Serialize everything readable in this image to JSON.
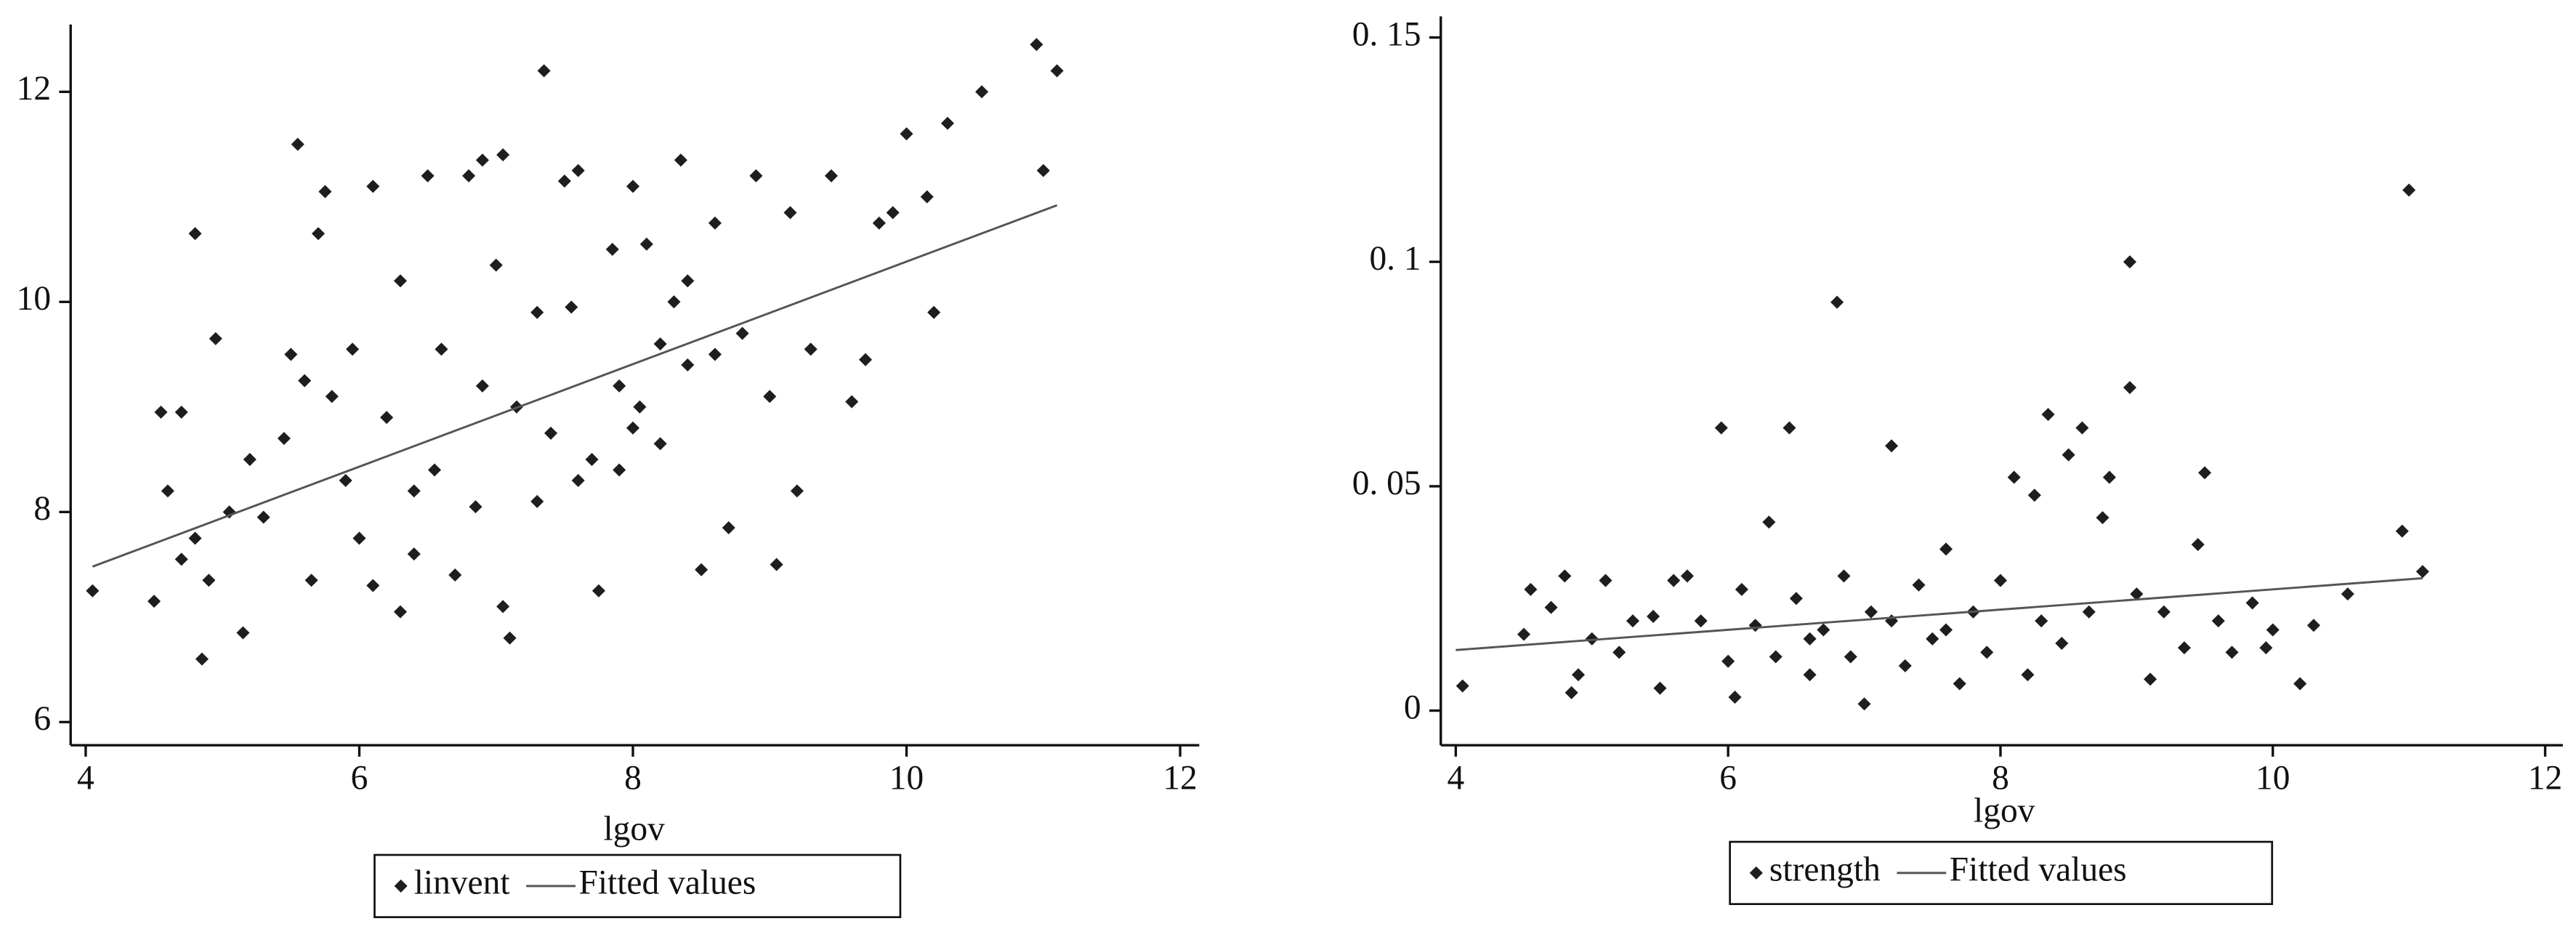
{
  "chart_data": [
    {
      "type": "scatter",
      "x_label": "lgov",
      "xlim": [
        3.89,
        12.14
      ],
      "ylim": [
        5.78,
        12.64
      ],
      "xticks": [
        4,
        6,
        8,
        10,
        12
      ],
      "yticks": [
        6,
        8,
        10,
        12
      ],
      "series": [
        {
          "name": "linvent",
          "color": "#1e1e1e",
          "marker": "diamond",
          "x": [
            4.05,
            4.5,
            4.55,
            4.6,
            4.7,
            4.7,
            4.8,
            4.8,
            4.85,
            4.9,
            4.95,
            5.05,
            5.15,
            5.2,
            5.3,
            5.45,
            5.5,
            5.55,
            5.6,
            5.65,
            5.7,
            5.75,
            5.8,
            5.9,
            5.95,
            6.0,
            6.1,
            6.1,
            6.2,
            6.3,
            6.3,
            6.4,
            6.5,
            6.55,
            6.6,
            6.7,
            6.8,
            6.85,
            6.9,
            7.0,
            7.05,
            7.05,
            7.1,
            7.15,
            7.3,
            7.35,
            7.4,
            7.5,
            7.55,
            7.6,
            7.7,
            7.75,
            7.85,
            7.9,
            8.0,
            8.05,
            8.1,
            8.2,
            8.3,
            8.35,
            8.4,
            8.5,
            8.6,
            8.7,
            8.8,
            8.9,
            9.0,
            9.05,
            9.15,
            9.2,
            9.3,
            9.45,
            9.6,
            9.7,
            9.8,
            9.9,
            10.0,
            10.15,
            10.2,
            10.3,
            10.55,
            10.95,
            11.0,
            11.1,
            7.6,
            7.9,
            8.2,
            8.4,
            7.3,
            6.9,
            6.4,
            8.6,
            8.0
          ],
          "values": [
            7.25,
            7.15,
            8.95,
            8.2,
            8.95,
            7.55,
            7.75,
            10.65,
            6.6,
            7.35,
            9.65,
            8.0,
            6.85,
            8.5,
            7.95,
            8.7,
            9.5,
            11.5,
            9.25,
            7.35,
            10.65,
            11.05,
            9.1,
            8.3,
            9.55,
            7.75,
            7.3,
            11.1,
            8.9,
            10.2,
            7.05,
            7.6,
            11.2,
            8.4,
            9.55,
            7.4,
            11.2,
            8.05,
            11.35,
            10.35,
            11.4,
            7.1,
            6.8,
            9.0,
            9.9,
            12.2,
            8.75,
            11.15,
            9.95,
            11.25,
            8.5,
            7.25,
            10.5,
            8.4,
            11.1,
            9.0,
            10.55,
            8.65,
            10.0,
            11.35,
            9.4,
            7.45,
            10.75,
            7.85,
            9.7,
            11.2,
            9.1,
            7.5,
            10.85,
            8.2,
            9.55,
            11.2,
            9.05,
            9.45,
            10.75,
            10.85,
            11.6,
            11.0,
            9.9,
            11.7,
            12.0,
            12.45,
            11.25,
            12.2,
            8.3,
            9.2,
            9.6,
            10.2,
            8.1,
            9.2,
            8.2,
            9.5,
            8.8
          ]
        },
        {
          "name": "Fitted values",
          "color": "#555555",
          "marker": "line",
          "x": [
            4.05,
            11.1
          ],
          "values": [
            7.48,
            10.92
          ]
        }
      ]
    },
    {
      "type": "scatter",
      "x_label": "lgov",
      "xlim": [
        3.89,
        12.13
      ],
      "ylim": [
        -0.0077,
        0.1547
      ],
      "xticks": [
        4,
        6,
        8,
        10,
        12
      ],
      "yticks": [
        0,
        {
          "value": 0.05,
          "label": "0. 05"
        },
        {
          "value": 0.1,
          "label": "0. 1"
        },
        {
          "value": 0.15,
          "label": "0. 15"
        }
      ],
      "series": [
        {
          "name": "strength",
          "color": "#1e1e1e",
          "marker": "diamond",
          "x": [
            4.05,
            4.5,
            4.55,
            4.7,
            4.8,
            4.85,
            4.9,
            5.0,
            5.1,
            5.2,
            5.3,
            5.45,
            5.5,
            5.6,
            5.7,
            5.8,
            5.95,
            6.0,
            6.05,
            6.1,
            6.2,
            6.3,
            6.35,
            6.45,
            6.5,
            6.6,
            6.7,
            6.8,
            6.85,
            6.9,
            7.0,
            7.05,
            7.2,
            7.3,
            7.4,
            7.5,
            7.6,
            7.7,
            7.8,
            7.9,
            8.0,
            8.1,
            8.2,
            8.25,
            8.35,
            8.45,
            8.5,
            8.6,
            8.65,
            8.75,
            8.8,
            8.95,
            8.95,
            9.0,
            9.1,
            9.2,
            9.35,
            9.45,
            9.5,
            9.6,
            9.7,
            9.85,
            9.95,
            10.0,
            10.2,
            10.3,
            10.55,
            10.95,
            11.0,
            11.1,
            7.2,
            7.6,
            8.3,
            6.6
          ],
          "values": [
            0.0055,
            0.017,
            0.027,
            0.023,
            0.03,
            0.004,
            0.008,
            0.016,
            0.029,
            0.013,
            0.02,
            0.021,
            0.005,
            0.029,
            0.03,
            0.02,
            0.063,
            0.011,
            0.003,
            0.027,
            0.019,
            0.042,
            0.012,
            0.063,
            0.025,
            0.008,
            0.018,
            0.091,
            0.03,
            0.012,
            0.0015,
            0.022,
            0.059,
            0.01,
            0.028,
            0.016,
            0.036,
            0.006,
            0.022,
            0.013,
            0.029,
            0.052,
            0.008,
            0.048,
            0.066,
            0.015,
            0.057,
            0.063,
            0.022,
            0.043,
            0.052,
            0.1,
            0.072,
            0.026,
            0.007,
            0.022,
            0.014,
            0.037,
            0.053,
            0.02,
            0.013,
            0.024,
            0.014,
            0.018,
            0.006,
            0.019,
            0.026,
            0.04,
            0.116,
            0.031,
            0.02,
            0.018,
            0.02,
            0.016
          ]
        },
        {
          "name": "Fitted values",
          "color": "#555555",
          "marker": "line",
          "x": [
            4.0,
            11.1
          ],
          "values": [
            0.0135,
            0.0295
          ]
        }
      ]
    }
  ]
}
